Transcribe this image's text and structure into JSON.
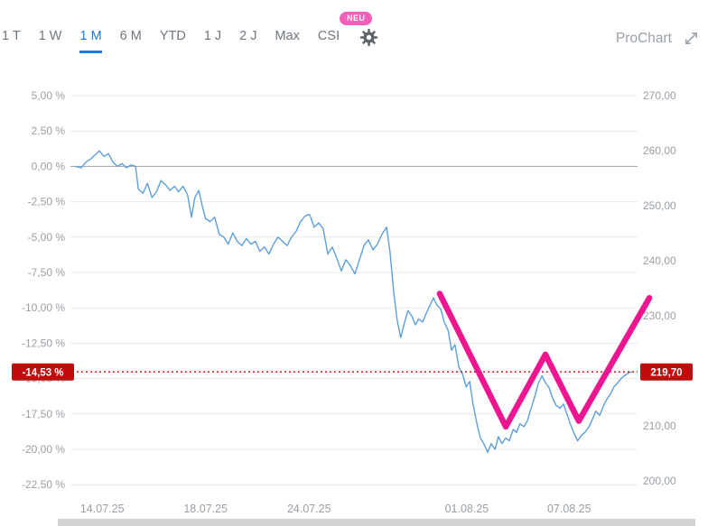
{
  "toolbar": {
    "ranges": [
      {
        "label": "1 T",
        "active": false
      },
      {
        "label": "1 W",
        "active": false
      },
      {
        "label": "1 M",
        "active": true
      },
      {
        "label": "6 M",
        "active": false
      },
      {
        "label": "YTD",
        "active": false
      },
      {
        "label": "1 J",
        "active": false
      },
      {
        "label": "2 J",
        "active": false
      },
      {
        "label": "Max",
        "active": false
      },
      {
        "label": "CSI",
        "active": false
      }
    ],
    "neu_badge": "NEU",
    "prochart_label": "ProChart"
  },
  "colors": {
    "accent_blue": "#1c7be0",
    "line_blue": "#5d9fdb",
    "annotation_pink": "#ee1690",
    "badge_red": "#bf0d0d",
    "dotted_red": "#cc0000",
    "grid": "#e9e9e9",
    "zero_line": "#9e9e9e",
    "axis_text": "#9aa0a6",
    "neu_pink": "#f25fb8"
  },
  "chart_data": {
    "type": "line",
    "title": "",
    "left_axis": {
      "unit": "%",
      "ylim": [
        5.0,
        -22.5
      ],
      "ticks": [
        {
          "value": 5.0,
          "label": "5,00 %"
        },
        {
          "value": 2.5,
          "label": "2,50 %"
        },
        {
          "value": 0.0,
          "label": "0,00 %"
        },
        {
          "value": -2.5,
          "label": "-2,50 %"
        },
        {
          "value": -5.0,
          "label": "-5,00 %"
        },
        {
          "value": -7.5,
          "label": "-7,50 %"
        },
        {
          "value": -10.0,
          "label": "-10,00 %"
        },
        {
          "value": -12.5,
          "label": "-12,50 %"
        },
        {
          "value": -15.0,
          "label": "-15,00 %"
        },
        {
          "value": -17.5,
          "label": "-17,50 %"
        },
        {
          "value": -20.0,
          "label": "-20,00 %"
        },
        {
          "value": -22.5,
          "label": "-22,50 %"
        }
      ]
    },
    "right_axis": {
      "ylim": [
        270,
        200
      ],
      "ticks": [
        {
          "value": 270,
          "label": "270,00"
        },
        {
          "value": 260,
          "label": "260,00"
        },
        {
          "value": 250,
          "label": "250,00"
        },
        {
          "value": 240,
          "label": "240,00"
        },
        {
          "value": 230,
          "label": "230,00"
        },
        {
          "value": 220,
          "label": "220,00"
        },
        {
          "value": 210,
          "label": "210,00"
        },
        {
          "value": 200,
          "label": "200,00"
        }
      ]
    },
    "x_axis": {
      "ticks": [
        {
          "f": 0.053,
          "label": "14.07.25"
        },
        {
          "f": 0.236,
          "label": "18.07.25"
        },
        {
          "f": 0.419,
          "label": "24.07.25"
        },
        {
          "f": 0.698,
          "label": "01.08.25"
        },
        {
          "f": 0.879,
          "label": "07.08.25"
        }
      ]
    },
    "current": {
      "percent": -14.53,
      "percent_label": "-14,53 %",
      "price": 219.7,
      "price_label": "219,70"
    },
    "series": [
      {
        "name": "price-percent-change",
        "color": "#5d9fdb",
        "points": [
          [
            0.005,
            0
          ],
          [
            0.016,
            -0.1
          ],
          [
            0.024,
            0.3
          ],
          [
            0.032,
            0.5
          ],
          [
            0.04,
            0.8
          ],
          [
            0.048,
            1.1
          ],
          [
            0.056,
            0.7
          ],
          [
            0.064,
            0.9
          ],
          [
            0.072,
            0.3
          ],
          [
            0.08,
            0
          ],
          [
            0.088,
            0.2
          ],
          [
            0.096,
            -0.1
          ],
          [
            0.104,
            0.1
          ],
          [
            0.112,
            0
          ],
          [
            0.117,
            -1.6
          ],
          [
            0.125,
            -1.9
          ],
          [
            0.133,
            -1.2
          ],
          [
            0.141,
            -2.2
          ],
          [
            0.149,
            -1.8
          ],
          [
            0.157,
            -1.0
          ],
          [
            0.165,
            -1.3
          ],
          [
            0.173,
            -1.7
          ],
          [
            0.181,
            -1.4
          ],
          [
            0.188,
            -1.8
          ],
          [
            0.196,
            -1.4
          ],
          [
            0.204,
            -2.0
          ],
          [
            0.211,
            -3.6
          ],
          [
            0.217,
            -2.2
          ],
          [
            0.224,
            -1.7
          ],
          [
            0.23,
            -2.8
          ],
          [
            0.236,
            -3.7
          ],
          [
            0.244,
            -3.9
          ],
          [
            0.252,
            -3.6
          ],
          [
            0.26,
            -4.8
          ],
          [
            0.268,
            -5.0
          ],
          [
            0.276,
            -5.5
          ],
          [
            0.284,
            -4.7
          ],
          [
            0.292,
            -5.3
          ],
          [
            0.3,
            -5.6
          ],
          [
            0.308,
            -5.1
          ],
          [
            0.316,
            -5.5
          ],
          [
            0.324,
            -5.3
          ],
          [
            0.332,
            -6.0
          ],
          [
            0.34,
            -5.7
          ],
          [
            0.348,
            -6.2
          ],
          [
            0.356,
            -5.5
          ],
          [
            0.364,
            -5.0
          ],
          [
            0.372,
            -5.3
          ],
          [
            0.38,
            -5.6
          ],
          [
            0.388,
            -5.0
          ],
          [
            0.396,
            -4.6
          ],
          [
            0.404,
            -3.9
          ],
          [
            0.412,
            -3.5
          ],
          [
            0.42,
            -3.4
          ],
          [
            0.428,
            -4.3
          ],
          [
            0.436,
            -4.0
          ],
          [
            0.444,
            -4.4
          ],
          [
            0.452,
            -6.2
          ],
          [
            0.46,
            -5.7
          ],
          [
            0.468,
            -6.5
          ],
          [
            0.476,
            -7.4
          ],
          [
            0.484,
            -6.6
          ],
          [
            0.492,
            -7.0
          ],
          [
            0.5,
            -7.6
          ],
          [
            0.508,
            -6.6
          ],
          [
            0.516,
            -5.6
          ],
          [
            0.524,
            -5.2
          ],
          [
            0.532,
            -5.9
          ],
          [
            0.54,
            -5.5
          ],
          [
            0.548,
            -4.8
          ],
          [
            0.556,
            -4.3
          ],
          [
            0.562,
            -6.0
          ],
          [
            0.569,
            -9.0
          ],
          [
            0.575,
            -10.9
          ],
          [
            0.581,
            -12.1
          ],
          [
            0.588,
            -11.0
          ],
          [
            0.594,
            -10.2
          ],
          [
            0.601,
            -10.6
          ],
          [
            0.607,
            -11.2
          ],
          [
            0.613,
            -10.8
          ],
          [
            0.62,
            -11.0
          ],
          [
            0.626,
            -10.4
          ],
          [
            0.633,
            -9.8
          ],
          [
            0.639,
            -9.3
          ],
          [
            0.645,
            -9.8
          ],
          [
            0.652,
            -10.1
          ],
          [
            0.658,
            -11.0
          ],
          [
            0.665,
            -11.6
          ],
          [
            0.671,
            -13.0
          ],
          [
            0.677,
            -12.6
          ],
          [
            0.684,
            -14.2
          ],
          [
            0.69,
            -14.6
          ],
          [
            0.697,
            -15.6
          ],
          [
            0.703,
            -15.2
          ],
          [
            0.709,
            -16.8
          ],
          [
            0.716,
            -18.2
          ],
          [
            0.722,
            -19.2
          ],
          [
            0.728,
            -19.6
          ],
          [
            0.735,
            -20.2
          ],
          [
            0.741,
            -19.6
          ],
          [
            0.748,
            -20.0
          ],
          [
            0.754,
            -19.1
          ],
          [
            0.76,
            -19.6
          ],
          [
            0.767,
            -19.2
          ],
          [
            0.773,
            -19.4
          ],
          [
            0.78,
            -18.6
          ],
          [
            0.786,
            -18.8
          ],
          [
            0.792,
            -18.2
          ],
          [
            0.799,
            -18.4
          ],
          [
            0.805,
            -18.0
          ],
          [
            0.811,
            -17.2
          ],
          [
            0.818,
            -16.3
          ],
          [
            0.824,
            -15.4
          ],
          [
            0.831,
            -14.8
          ],
          [
            0.837,
            -15.3
          ],
          [
            0.843,
            -15.6
          ],
          [
            0.85,
            -16.4
          ],
          [
            0.856,
            -16.9
          ],
          [
            0.863,
            -17.1
          ],
          [
            0.869,
            -16.8
          ],
          [
            0.875,
            -17.5
          ],
          [
            0.882,
            -18.3
          ],
          [
            0.888,
            -18.9
          ],
          [
            0.894,
            -19.4
          ],
          [
            0.901,
            -19.0
          ],
          [
            0.907,
            -18.8
          ],
          [
            0.914,
            -18.4
          ],
          [
            0.92,
            -17.9
          ],
          [
            0.926,
            -17.3
          ],
          [
            0.933,
            -17.6
          ],
          [
            0.939,
            -17.0
          ],
          [
            0.945,
            -16.5
          ],
          [
            0.952,
            -16.1
          ],
          [
            0.958,
            -15.6
          ],
          [
            0.965,
            -15.3
          ],
          [
            0.971,
            -15.0
          ],
          [
            0.977,
            -14.8
          ],
          [
            0.984,
            -14.6
          ],
          [
            0.99,
            -14.53
          ]
        ]
      }
    ],
    "annotation": {
      "name": "w-pattern-drawing",
      "color": "#ee1690",
      "points": [
        [
          0.65,
          -9.0
        ],
        [
          0.767,
          -18.4
        ],
        [
          0.837,
          -13.3
        ],
        [
          0.896,
          -18.0
        ],
        [
          1.021,
          -9.3
        ]
      ]
    }
  }
}
